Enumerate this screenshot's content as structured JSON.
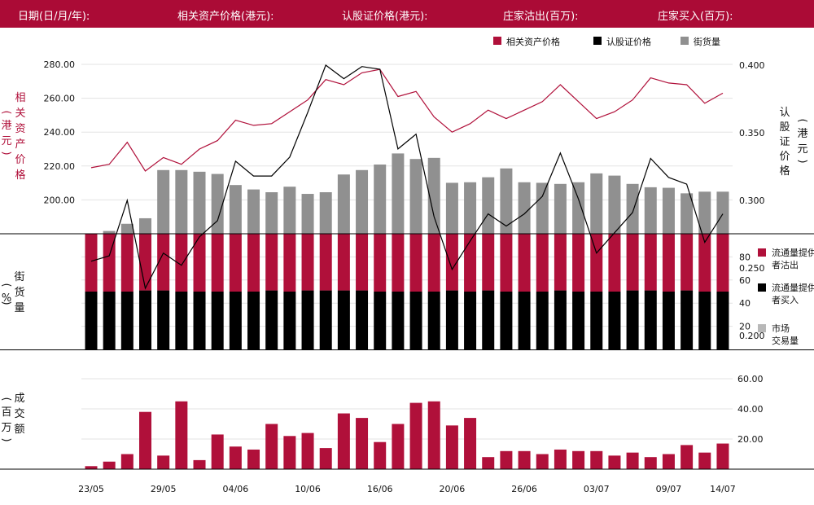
{
  "header": {
    "date_label": "日期(日/月/年):",
    "underlying_price_label": "相关资产价格(港元):",
    "warrant_price_label": "认股证价格(港元):",
    "issuer_sold_label": "庄家沽出(百万):",
    "issuer_bought_label": "庄家买入(百万):"
  },
  "legend_top": [
    {
      "label": "相关资产价格",
      "color": "#b0103a"
    },
    {
      "label": "认股证价格",
      "color": "#000000"
    },
    {
      "label": "街货量",
      "color": "#909090"
    }
  ],
  "legend_mid": [
    {
      "label": "流通量提供者沽出",
      "color": "#b0103a"
    },
    {
      "label": "流通量提供者买入",
      "color": "#000000"
    },
    {
      "label": "市场交易量",
      "color": "#b8b8b8"
    }
  ],
  "chart_data": [
    {
      "type": "line",
      "ylabel_left": "相关资产价格（港元）",
      "ylabel_right": "认股证价格（港元）",
      "y_left_ticks": [
        "280.00",
        "260.00",
        "240.00",
        "220.00",
        "200.00"
      ],
      "y_right_ticks": [
        "0.400",
        "0.350",
        "0.300",
        "0.250",
        "0.200"
      ],
      "y_left_range": [
        180,
        288
      ],
      "y_right_range": [
        0.15,
        0.41
      ],
      "series": [
        {
          "name": "相关资产价格",
          "axis": "left",
          "color": "#b0103a",
          "values": [
            219,
            221,
            234,
            217,
            225,
            221,
            230,
            235,
            247,
            244,
            245,
            252,
            259,
            271,
            268,
            275,
            277,
            261,
            264,
            249,
            240,
            245,
            253,
            248,
            253,
            258,
            268,
            258,
            248,
            252,
            259,
            272,
            269,
            268,
            257,
            263
          ]
        },
        {
          "name": "认股证价格",
          "axis": "right",
          "color": "#000000",
          "values": [
            0.255,
            0.259,
            0.3,
            0.235,
            0.261,
            0.252,
            0.273,
            0.285,
            0.329,
            0.318,
            0.318,
            0.332,
            0.365,
            0.4,
            0.39,
            0.399,
            0.397,
            0.338,
            0.349,
            0.288,
            0.249,
            0.27,
            0.29,
            0.281,
            0.29,
            0.303,
            0.335,
            0.301,
            0.261,
            0.276,
            0.291,
            0.331,
            0.317,
            0.312,
            0.269,
            0.29
          ]
        }
      ]
    },
    {
      "type": "bar",
      "name": "街货量",
      "color": "#909090",
      "values": [
        0,
        5,
        18,
        28,
        115,
        115,
        112,
        108,
        88,
        80,
        75,
        85,
        72,
        75,
        107,
        115,
        125,
        145,
        135,
        137,
        92,
        93,
        102,
        118,
        93,
        92,
        90,
        93,
        109,
        105,
        90,
        84,
        83,
        73,
        76,
        76
      ]
    },
    {
      "type": "bar",
      "stacked": true,
      "ylabel": "街货量（%）",
      "y_ticks": [
        "80",
        "60",
        "40",
        "20"
      ],
      "ylim": [
        0,
        100
      ],
      "series": [
        {
          "name": "流通量提供者沽出",
          "color": "#b0103a",
          "values": [
            50,
            50,
            50,
            49,
            49,
            50,
            50,
            50,
            50,
            50,
            49,
            50,
            49,
            49,
            49,
            49,
            50,
            50,
            50,
            50,
            49,
            50,
            49,
            50,
            50,
            50,
            49,
            50,
            50,
            50,
            49,
            49,
            50,
            49,
            50,
            50
          ]
        },
        {
          "name": "流通量提供者买入",
          "color": "#000000",
          "values": [
            50,
            50,
            50,
            51,
            51,
            50,
            50,
            50,
            50,
            50,
            51,
            50,
            51,
            51,
            51,
            51,
            50,
            50,
            50,
            50,
            51,
            50,
            51,
            50,
            50,
            50,
            51,
            50,
            50,
            50,
            51,
            51,
            50,
            51,
            50,
            50
          ]
        }
      ]
    },
    {
      "type": "bar",
      "ylabel": "成交额（百万）",
      "y_ticks": [
        "60.00",
        "40.00",
        "20.00"
      ],
      "ylim": [
        0,
        69
      ],
      "name": "成交额",
      "color": "#b0103a",
      "values": [
        2,
        5,
        10,
        38,
        9,
        45,
        6,
        23,
        15,
        13,
        30,
        22,
        24,
        14,
        37,
        34,
        18,
        30,
        44,
        45,
        29,
        34,
        8,
        12,
        12,
        10,
        13,
        12,
        12,
        9,
        11,
        8,
        10,
        16,
        11,
        17
      ]
    }
  ],
  "x_axis": {
    "tick_labels": [
      "23/05",
      "29/05",
      "04/06",
      "10/06",
      "16/06",
      "20/06",
      "26/06",
      "03/07",
      "09/07",
      "14/07"
    ],
    "tick_indices": [
      0,
      4,
      8,
      12,
      16,
      20,
      24,
      28,
      32,
      35
    ]
  }
}
